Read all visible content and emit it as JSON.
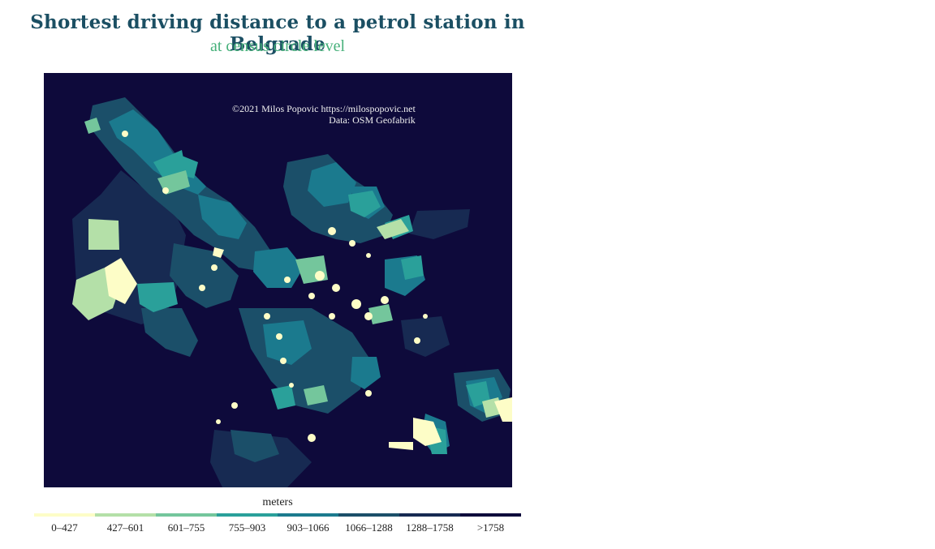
{
  "title": "Shortest driving distance to a petrol station in Belgrade",
  "subtitle": "at census circle level",
  "credit": {
    "line1": "©2021 Milos Popovic https://milospopovic.net",
    "line2": "Data: OSM Geofabrik"
  },
  "legend": {
    "title": "meters",
    "classes": [
      {
        "label": "0–427",
        "color": "#fdfdc7"
      },
      {
        "label": "427–601",
        "color": "#b4e0a8"
      },
      {
        "label": "601–755",
        "color": "#74c69c"
      },
      {
        "label": "755–903",
        "color": "#2aa09a"
      },
      {
        "label": "903–1066",
        "color": "#1b7a8e"
      },
      {
        "label": "1066–1288",
        "color": "#1b4f69"
      },
      {
        "label": "1288–1758",
        "color": "#172a52"
      },
      {
        "label": ">1758",
        "color": "#0e0a3b"
      }
    ]
  },
  "colors": {
    "background": "#0e0a3b",
    "title": "#1b4f63",
    "subtitle": "#46b07a"
  }
}
